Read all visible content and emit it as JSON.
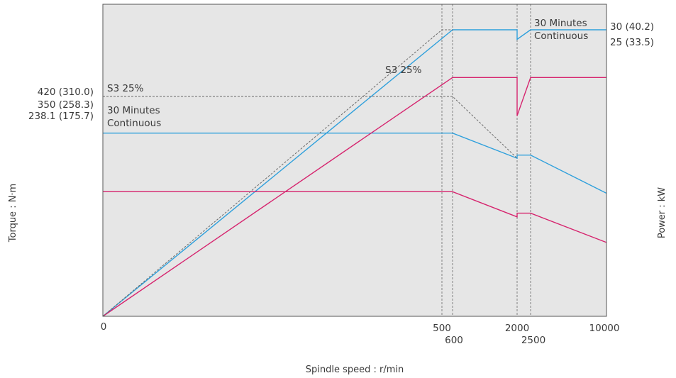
{
  "chart_data": {
    "type": "line",
    "title": "",
    "xlabel": "Spindle speed : r/min",
    "ylabel_left": "Torque : N·m",
    "ylabel_right": "Power : kW",
    "x_origin_label": "0",
    "x_ticks_upper": [
      "500",
      "2000",
      "10000"
    ],
    "x_ticks_lower": [
      "600",
      "2500"
    ],
    "torque_ticks": [
      "420 (310.0)",
      "350 (258.3)",
      "238.1 (175.7)"
    ],
    "power_ticks": [
      "30 (40.2)",
      "25 (33.5)"
    ],
    "torque_annotations": {
      "s3": "S3 25%",
      "thirty": "30 Minutes",
      "continuous": "Continuous"
    },
    "power_annotations": {
      "s3": "S3 25%",
      "thirty": "30 Minutes",
      "continuous": "Continuous"
    },
    "grid": false,
    "colors": {
      "plot_background": "#e6e6e6",
      "thirty_minutes": "#2fa0dc",
      "continuous": "#d6246e",
      "s3_25": "#6a6a6a",
      "frame": "#555555"
    },
    "series": [
      {
        "name": "30 Minutes",
        "torque": [
          [
            0,
            350
          ],
          [
            600,
            350
          ],
          [
            2000,
            302
          ],
          [
            2000,
            308
          ],
          [
            2500,
            308
          ],
          [
            10000,
            235
          ]
        ],
        "power": [
          [
            0,
            0
          ],
          [
            600,
            30
          ],
          [
            2000,
            30
          ],
          [
            2000,
            29
          ],
          [
            2500,
            30
          ],
          [
            10000,
            30
          ]
        ]
      },
      {
        "name": "Continuous",
        "torque": [
          [
            0,
            238.1
          ],
          [
            600,
            238.1
          ],
          [
            2000,
            190
          ],
          [
            2000,
            197
          ],
          [
            2500,
            197
          ],
          [
            10000,
            141
          ]
        ],
        "power": [
          [
            0,
            0
          ],
          [
            600,
            25
          ],
          [
            2000,
            25
          ],
          [
            2000,
            21
          ],
          [
            2500,
            25
          ],
          [
            10000,
            25
          ]
        ]
      },
      {
        "name": "S3 25%",
        "torque": [
          [
            0,
            420
          ],
          [
            600,
            420
          ],
          [
            2000,
            302
          ]
        ],
        "power": [
          [
            0,
            0
          ],
          [
            500,
            30
          ],
          [
            600,
            30
          ]
        ]
      }
    ]
  }
}
